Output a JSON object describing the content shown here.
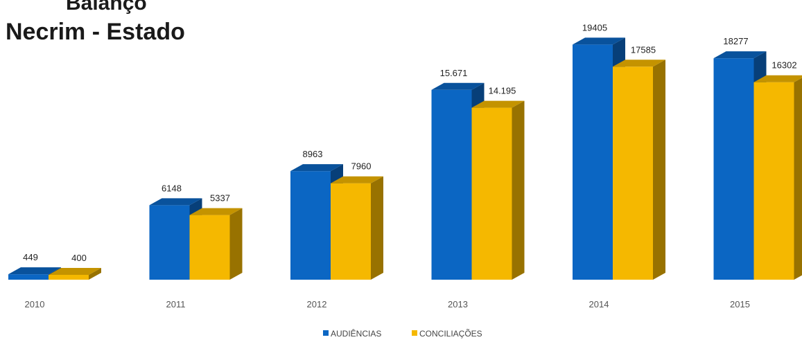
{
  "chart_data": {
    "type": "bar",
    "title": [
      "Balanço",
      "Necrim - Estado"
    ],
    "xlabel": "",
    "ylabel": "",
    "ylim": [
      0,
      20000
    ],
    "grid": false,
    "legend_placement": "bottom",
    "categories": [
      "2010",
      "2011",
      "2012",
      "2013",
      "2014",
      "2015"
    ],
    "series": [
      {
        "name": "AUDIÊNCIAS",
        "color": "#0b66c3",
        "values": [
          449,
          6148,
          8963,
          15671,
          19405,
          18277
        ],
        "labels": [
          "449",
          "6148",
          "8963",
          "15.671",
          "19405",
          "18277"
        ]
      },
      {
        "name": "CONCILIAÇÕES",
        "color": "#f5b800",
        "values": [
          400,
          5337,
          7960,
          14195,
          17585,
          16302
        ],
        "labels": [
          "400",
          "5337",
          "7960",
          "14.195",
          "17585",
          "16302"
        ]
      }
    ]
  }
}
